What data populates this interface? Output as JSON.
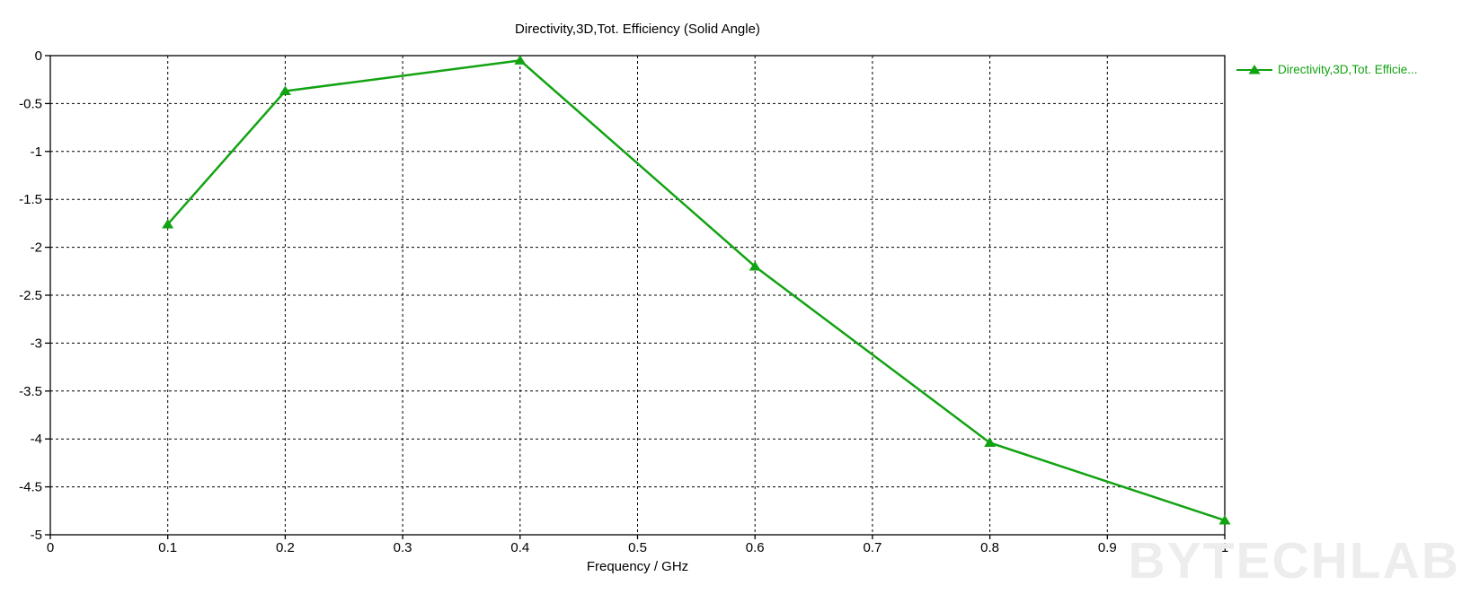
{
  "title": "Directivity,3D,Tot. Efficiency (Solid Angle)",
  "legend": {
    "label": "Directivity,3D,Tot. Efficie...",
    "color": "#12a312"
  },
  "watermark": "BYTECHLAB",
  "colors": {
    "series_green": "#12a312",
    "axis": "#000000",
    "gridline": "#000000",
    "watermark_gray": "#ededed"
  },
  "chart_data": {
    "type": "line",
    "title": "Directivity,3D,Tot. Efficiency (Solid Angle)",
    "xlabel": "Frequency / GHz",
    "ylabel": "",
    "xlim": [
      0,
      1
    ],
    "ylim": [
      -5,
      0
    ],
    "x_ticks": [
      0,
      0.1,
      0.2,
      0.3,
      0.4,
      0.5,
      0.6,
      0.7,
      0.8,
      0.9,
      1
    ],
    "x_tick_labels": [
      "0",
      "0.1",
      "0.2",
      "0.3",
      "0.4",
      "0.5",
      "0.6",
      "0.7",
      "0.8",
      "0.9",
      "1"
    ],
    "y_ticks": [
      0,
      -0.5,
      -1,
      -1.5,
      -2,
      -2.5,
      -3,
      -3.5,
      -4,
      -4.5,
      -5
    ],
    "y_tick_labels": [
      "0",
      "-0.5",
      "-1",
      "-1.5",
      "-2",
      "-2.5",
      "-3",
      "-3.5",
      "-4",
      "-4.5",
      "-5"
    ],
    "grid": "dashed",
    "legend_position": "top-right",
    "series": [
      {
        "name": "Directivity,3D,Tot. Efficie...",
        "color": "#12a312",
        "marker": "triangle-up",
        "x": [
          0.1,
          0.2,
          0.4,
          0.6,
          0.8,
          1.0
        ],
        "y": [
          -1.76,
          -0.37,
          -0.05,
          -2.2,
          -4.04,
          -4.85
        ]
      }
    ]
  }
}
